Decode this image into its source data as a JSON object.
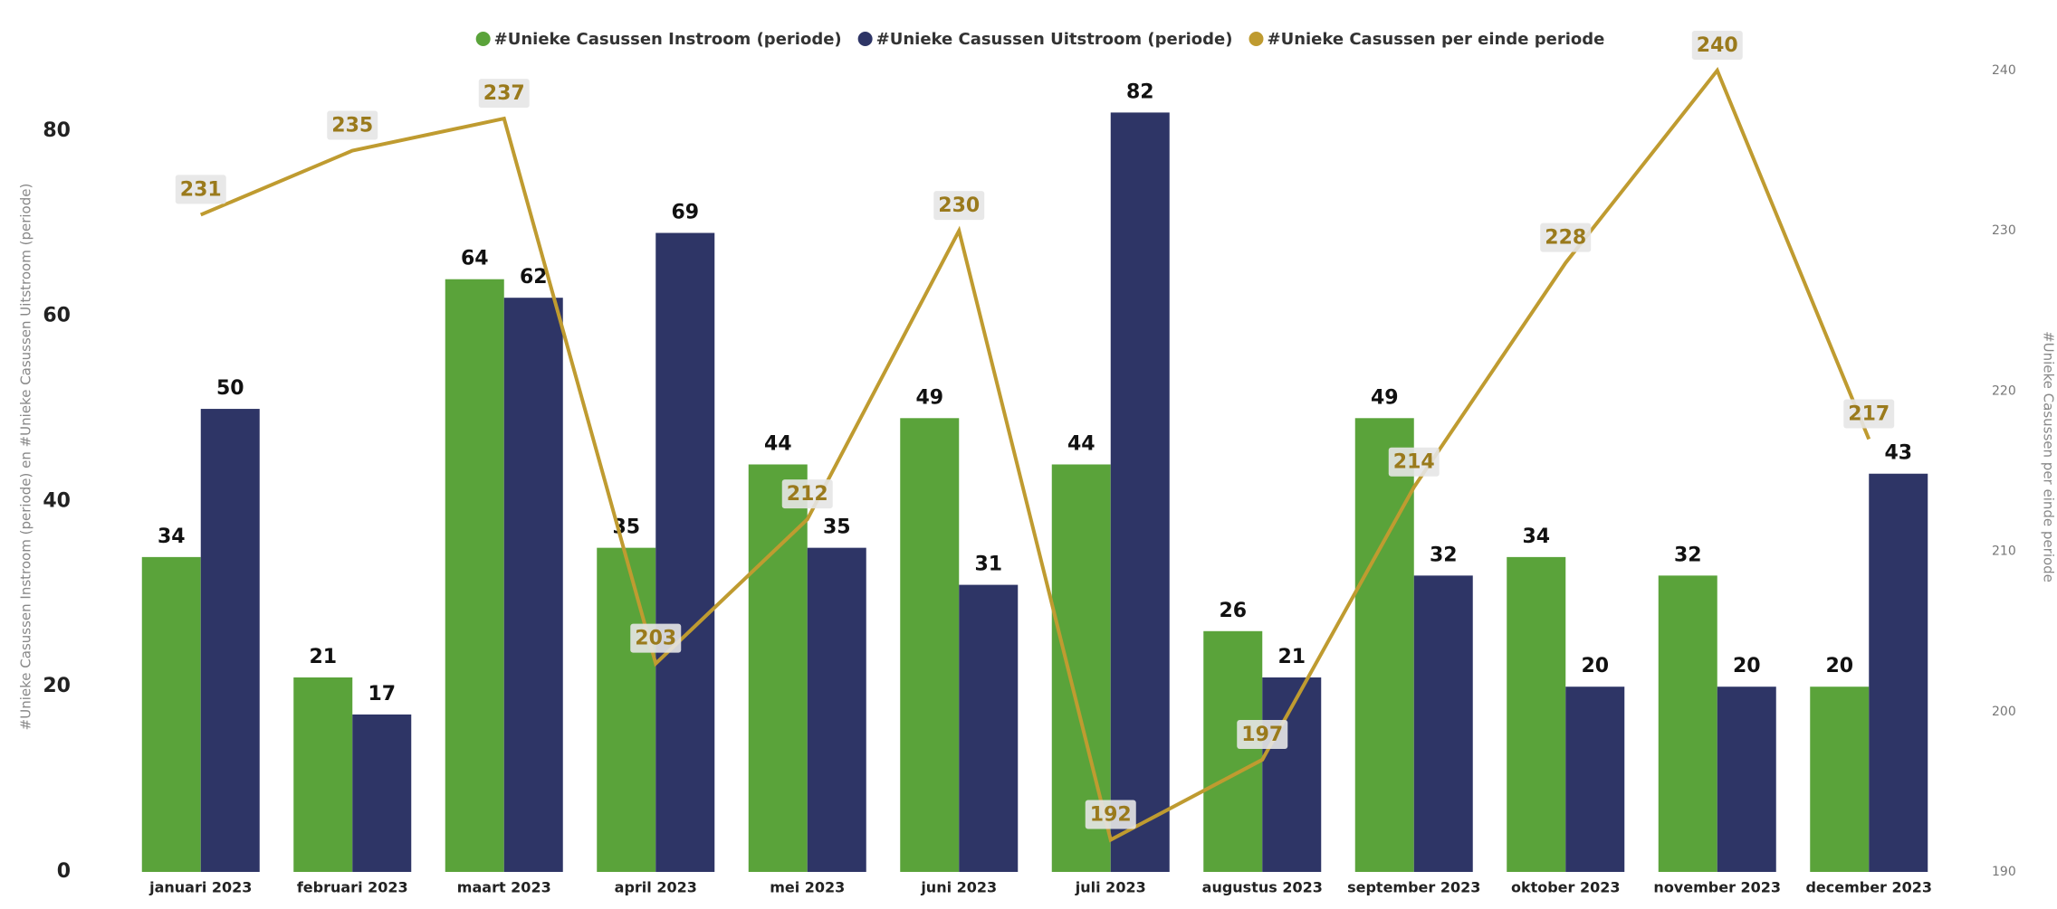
{
  "chart_data": {
    "type": "bar-line",
    "categories": [
      "januari 2023",
      "februari 2023",
      "maart 2023",
      "april 2023",
      "mei 2023",
      "juni 2023",
      "juli 2023",
      "augustus 2023",
      "september 2023",
      "oktober 2023",
      "november 2023",
      "december 2023"
    ],
    "series": [
      {
        "name": "#Unieke Casussen Instroom (periode)",
        "type": "bar",
        "color": "#5aa33a",
        "values": [
          34,
          21,
          64,
          35,
          44,
          49,
          44,
          26,
          49,
          34,
          32,
          20
        ]
      },
      {
        "name": "#Unieke Casussen Uitstroom (periode)",
        "type": "bar",
        "color": "#2e3566",
        "values": [
          50,
          17,
          62,
          69,
          35,
          31,
          82,
          21,
          32,
          20,
          20,
          43
        ]
      },
      {
        "name": "#Unieke Casussen per einde periode",
        "type": "line",
        "axis": "y2",
        "color": "#bf9b30",
        "values": [
          231,
          235,
          237,
          203,
          212,
          230,
          192,
          197,
          214,
          228,
          240,
          217
        ]
      }
    ],
    "ylabel": "#Unieke Casussen Instroom (periode) en #Unieke Casussen Uitstroom (periode)",
    "y2label": "#Unieke Casussen per einde periode",
    "ylim": [
      0,
      90
    ],
    "yticks": [
      0,
      20,
      40,
      60,
      80
    ],
    "y2lim": [
      190,
      242
    ],
    "y2ticks": [
      190,
      200,
      210,
      220,
      230,
      240
    ],
    "grid": false,
    "legend": "top"
  }
}
